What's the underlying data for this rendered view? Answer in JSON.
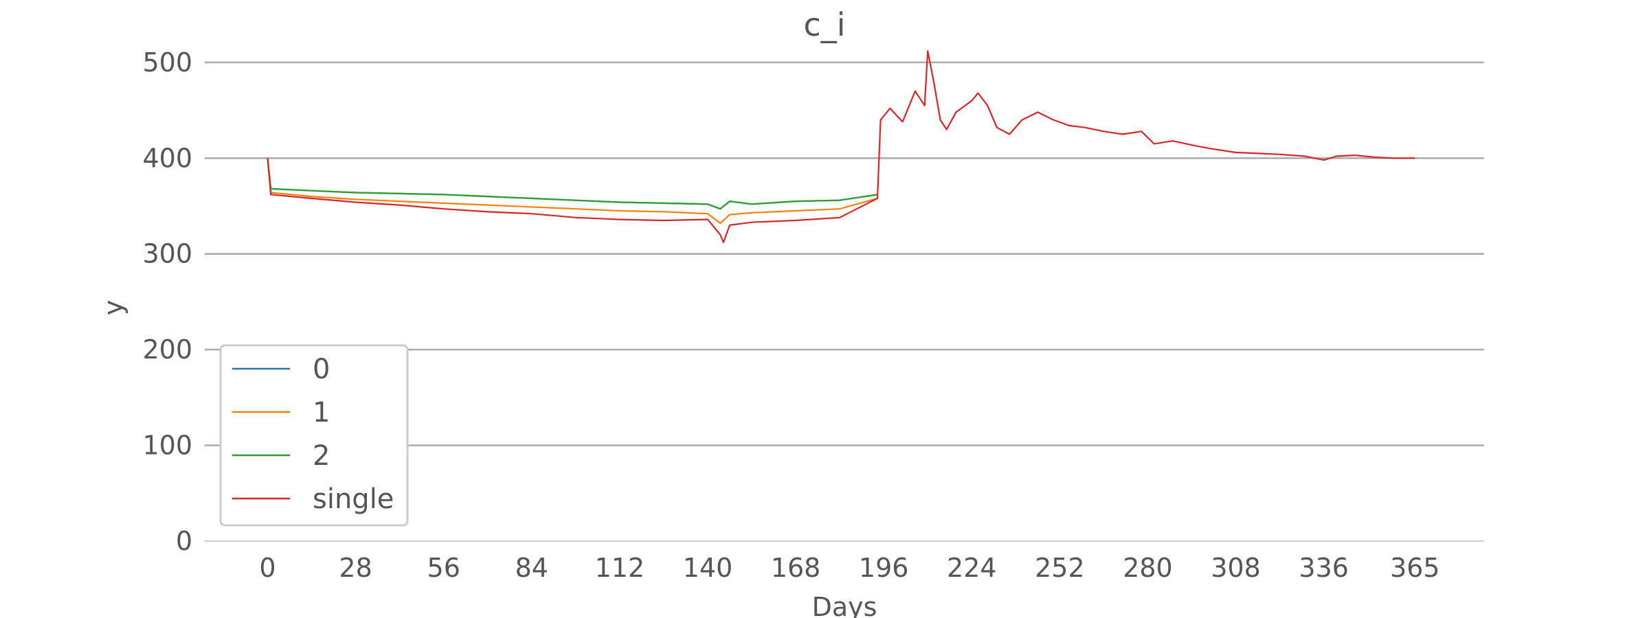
{
  "chart_data": {
    "type": "line",
    "title": "c_i",
    "xlabel": "Days",
    "ylabel": "y",
    "xlim": [
      -20,
      387
    ],
    "ylim": [
      0,
      500
    ],
    "x_ticks": [
      "0",
      "28",
      "56",
      "84",
      "112",
      "140",
      "168",
      "196",
      "224",
      "252",
      "280",
      "308",
      "336",
      "365"
    ],
    "y_ticks": [
      "0",
      "100",
      "200",
      "300",
      "400",
      "500"
    ],
    "grid": "horizontal",
    "legend_position": "lower-left",
    "series": [
      {
        "name": "0",
        "color": "#1f77b4",
        "x": [
          0,
          1,
          14,
          28,
          42,
          56,
          70,
          84,
          98,
          112,
          126,
          140,
          144,
          147,
          154,
          168,
          182,
          194
        ],
        "y": [
          400,
          368,
          366,
          364,
          363,
          362,
          360,
          358,
          356,
          354,
          353,
          352,
          347,
          355,
          352,
          355,
          356,
          362
        ]
      },
      {
        "name": "1",
        "color": "#ff7f0e",
        "x": [
          0,
          1,
          14,
          28,
          42,
          56,
          70,
          84,
          98,
          112,
          126,
          140,
          144,
          147,
          154,
          168,
          182,
          194
        ],
        "y": [
          400,
          364,
          360,
          357,
          355,
          353,
          351,
          349,
          347,
          345,
          344,
          342,
          332,
          341,
          343,
          345,
          347,
          358
        ]
      },
      {
        "name": "2",
        "color": "#2ca02c",
        "x": [
          0,
          1,
          14,
          28,
          42,
          56,
          70,
          84,
          98,
          112,
          126,
          140,
          144,
          147,
          154,
          168,
          182,
          194
        ],
        "y": [
          400,
          368,
          366,
          364,
          363,
          362,
          360,
          358,
          356,
          354,
          353,
          352,
          347,
          355,
          352,
          355,
          356,
          362
        ]
      },
      {
        "name": "single",
        "color": "#d62728",
        "x": [
          0,
          1,
          14,
          28,
          42,
          56,
          70,
          84,
          98,
          112,
          126,
          140,
          144,
          145,
          147,
          154,
          168,
          182,
          194,
          195,
          198,
          202,
          206,
          209,
          210,
          212,
          214,
          216,
          219,
          224,
          226,
          229,
          232,
          236,
          240,
          245,
          250,
          255,
          260,
          266,
          272,
          278,
          282,
          288,
          295,
          300,
          308,
          315,
          322,
          330,
          336,
          340,
          346,
          352,
          358,
          365
        ],
        "y": [
          400,
          362,
          358,
          354,
          351,
          347,
          344,
          342,
          338,
          336,
          335,
          336,
          320,
          312,
          330,
          333,
          335,
          338,
          358,
          440,
          452,
          438,
          470,
          455,
          512,
          478,
          440,
          430,
          448,
          460,
          468,
          455,
          432,
          425,
          440,
          448,
          440,
          434,
          432,
          428,
          425,
          428,
          415,
          418,
          413,
          410,
          406,
          405,
          404,
          402,
          398,
          402,
          403,
          401,
          400,
          400
        ]
      }
    ]
  }
}
